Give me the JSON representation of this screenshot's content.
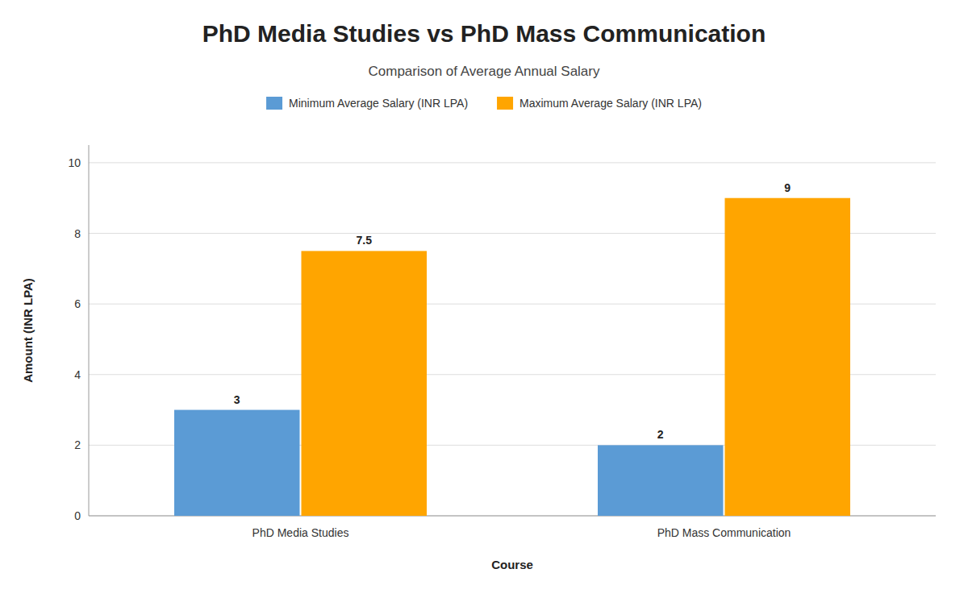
{
  "chart_data": {
    "type": "bar",
    "title": "PhD Media Studies vs PhD Mass Communication",
    "subtitle": "Comparison of Average Annual Salary",
    "xlabel": "Course",
    "ylabel": "Amount (INR LPA)",
    "categories": [
      "PhD Media Studies",
      "PhD Mass Communication"
    ],
    "series": [
      {
        "name": "Minimum Average Salary (INR LPA)",
        "color": "#5B9BD5",
        "values": [
          3,
          2
        ]
      },
      {
        "name": "Maximum Average Salary (INR LPA)",
        "color": "#FFA500",
        "values": [
          7.5,
          9
        ]
      }
    ],
    "ylim": [
      0,
      10.5
    ],
    "yticks": [
      0,
      2,
      4,
      6,
      8,
      10
    ],
    "grid": true,
    "legend": "top",
    "data_labels": true
  }
}
